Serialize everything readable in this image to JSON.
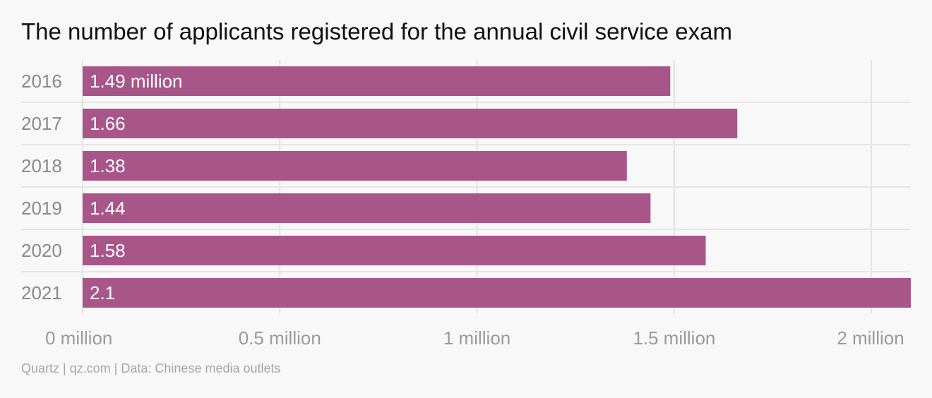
{
  "chart_data": {
    "type": "bar",
    "orientation": "horizontal",
    "title": "The number of applicants registered for the annual civil service exam",
    "categories": [
      "2016",
      "2017",
      "2018",
      "2019",
      "2020",
      "2021"
    ],
    "values": [
      1.49,
      1.66,
      1.38,
      1.44,
      1.58,
      2.1
    ],
    "data_labels": [
      "1.49 million",
      "1.66",
      "1.38",
      "1.44",
      "1.58",
      "2.1"
    ],
    "x_ticks": [
      0,
      0.5,
      1,
      1.5,
      2
    ],
    "x_tick_labels": [
      "0 million",
      "0.5 million",
      "1 million",
      "1.5 million",
      "2 million"
    ],
    "xlim": [
      0,
      2.1
    ],
    "xlabel": "",
    "ylabel": "",
    "grid": true,
    "legend": "none",
    "bar_color": "#a8568a"
  },
  "footer": {
    "source": "Quartz | qz.com | Data: Chinese media outlets"
  }
}
